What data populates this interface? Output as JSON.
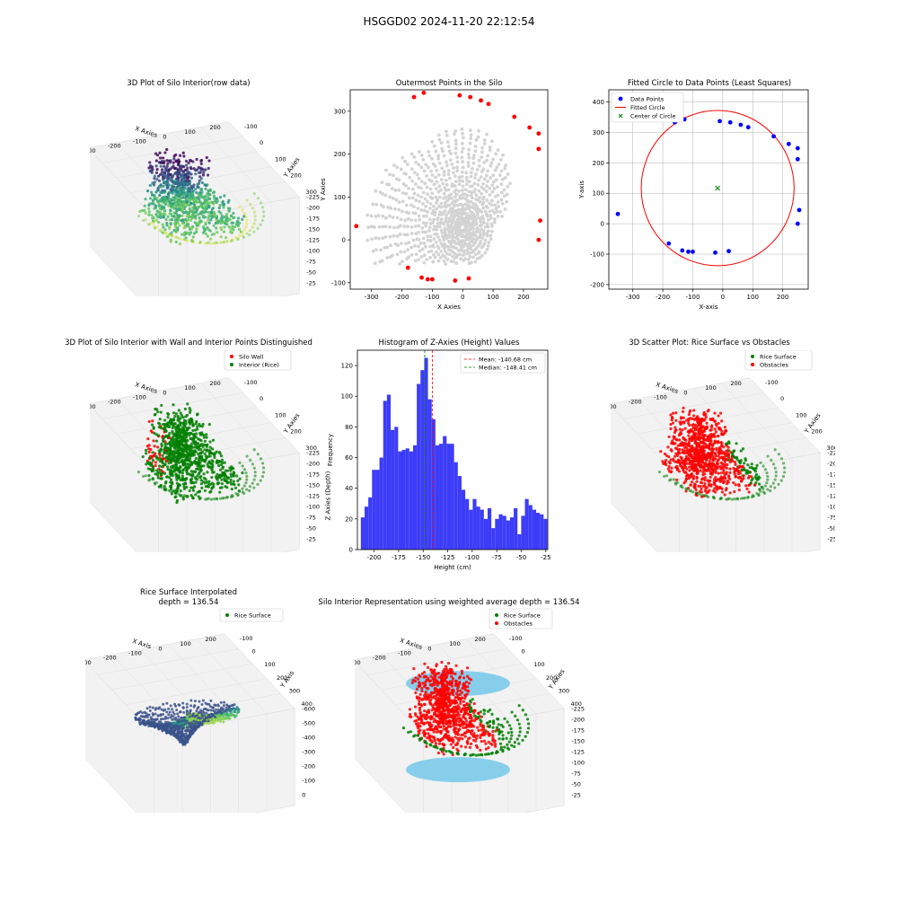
{
  "suptitle": "HSGGD02 2024-11-20 22:12:54",
  "chart_data": [
    {
      "id": "p1",
      "type": "scatter3d",
      "title": "3D Plot of Silo Interior(row data)",
      "xlabel": "X Axies",
      "ylabel": "Y Axies",
      "zlabel": "Z Axies (Depth)",
      "xticks": [
        "-300",
        "-200",
        "-100",
        "0",
        "100",
        "200"
      ],
      "yticks": [
        "-100",
        "0",
        "100",
        "200",
        "300"
      ],
      "zticks": [
        "-25",
        "-50",
        "-75",
        "-100",
        "-125",
        "-150",
        "-175",
        "-200",
        "-225"
      ],
      "colormap": "viridis"
    },
    {
      "id": "p2",
      "type": "scatter",
      "title": "Outermost Points in the Silo",
      "xlabel": "X Axies",
      "ylabel": "Y Axies",
      "xlim": [
        -370,
        280
      ],
      "ylim": [
        -115,
        350
      ],
      "xticks": [
        -300,
        -200,
        -100,
        0,
        100,
        200
      ],
      "yticks": [
        -100,
        0,
        100,
        200,
        300
      ],
      "colors": {
        "points": "#d3d3d3",
        "outermost": "#ff0000"
      },
      "outermost": [
        [
          -350,
          32
        ],
        [
          -180,
          -65
        ],
        [
          -135,
          -88
        ],
        [
          -115,
          -92
        ],
        [
          -100,
          -92
        ],
        [
          -25,
          -95
        ],
        [
          20,
          -90
        ],
        [
          -160,
          333
        ],
        [
          -128,
          343
        ],
        [
          -10,
          337
        ],
        [
          25,
          333
        ],
        [
          60,
          325
        ],
        [
          85,
          317
        ],
        [
          170,
          287
        ],
        [
          220,
          262
        ],
        [
          250,
          248
        ],
        [
          250,
          212
        ],
        [
          255,
          45
        ],
        [
          250,
          0
        ]
      ]
    },
    {
      "id": "p3",
      "type": "scatter",
      "title": "Fitted Circle to Data Points (Least Squares)",
      "xlabel": "X-axis",
      "ylabel": "Y-axis",
      "xlim": [
        -380,
        285
      ],
      "ylim": [
        -215,
        440
      ],
      "xticks": [
        -300,
        -200,
        -100,
        0,
        100,
        200
      ],
      "yticks": [
        -200,
        -100,
        0,
        100,
        200,
        300,
        400
      ],
      "legend": [
        "Data Points",
        "Fitted Circle",
        "Center of Circle"
      ],
      "circle": {
        "cx": -17,
        "cy": 117,
        "r": 255
      },
      "points": [
        [
          -350,
          32
        ],
        [
          -180,
          -65
        ],
        [
          -135,
          -88
        ],
        [
          -115,
          -92
        ],
        [
          -100,
          -92
        ],
        [
          -25,
          -95
        ],
        [
          20,
          -90
        ],
        [
          -160,
          333
        ],
        [
          -128,
          343
        ],
        [
          -10,
          337
        ],
        [
          25,
          333
        ],
        [
          60,
          325
        ],
        [
          85,
          317
        ],
        [
          170,
          287
        ],
        [
          220,
          262
        ],
        [
          250,
          248
        ],
        [
          250,
          212
        ],
        [
          255,
          45
        ],
        [
          250,
          0
        ]
      ],
      "colors": {
        "points": "#0000ff",
        "circle": "#ff0000",
        "center": "#008000"
      }
    },
    {
      "id": "p4",
      "type": "scatter3d",
      "title": "3D Plot of Silo Interior with Wall and Interior Points Distinguished",
      "xlabel": "X Axies",
      "ylabel": "Y Axies",
      "zlabel": "Z Axies (Depth)",
      "xticks": [
        "-300",
        "-200",
        "-100",
        "0",
        "100",
        "200"
      ],
      "yticks": [
        "-100",
        "0",
        "100",
        "200",
        "300"
      ],
      "zticks": [
        "-25",
        "-50",
        "-75",
        "-100",
        "-125",
        "-150",
        "-175",
        "-200",
        "-225"
      ],
      "legend": [
        "Silo Wall",
        "Interior (Rice)"
      ],
      "colors": {
        "wall": "#ff0000",
        "interior": "#008000"
      }
    },
    {
      "id": "p5",
      "type": "bar",
      "title": "Histogram of Z-Axies (Height) Values",
      "xlabel": "Height (cm)",
      "ylabel": "Frequency",
      "xlim": [
        -217,
        -23
      ],
      "ylim": [
        0,
        130
      ],
      "xticks": [
        -200,
        -175,
        -150,
        -125,
        -100,
        -75,
        -50,
        -25
      ],
      "yticks": [
        0,
        20,
        40,
        60,
        80,
        100,
        120
      ],
      "bin_start": -213.5,
      "bin_width": 3.8,
      "values": [
        21,
        28,
        34,
        52,
        52,
        60,
        97,
        101,
        78,
        80,
        64,
        65,
        66,
        64,
        68,
        108,
        117,
        125,
        98,
        85,
        68,
        69,
        74,
        69,
        69,
        57,
        48,
        39,
        33,
        26,
        33,
        28,
        26,
        20,
        27,
        14,
        20,
        23,
        22,
        19,
        21,
        27,
        10,
        22,
        33,
        29,
        26,
        24,
        23,
        20
      ],
      "mean": -140.68,
      "median": -148.41,
      "legend": [
        "Mean: -140.68 cm",
        "Median: -148.41 cm"
      ],
      "colors": {
        "bars": "#3c3cf8",
        "mean": "#ff0000",
        "median": "#008000"
      }
    },
    {
      "id": "p6",
      "type": "scatter3d",
      "title": "3D Scatter Plot: Rice Surface vs Obstacles",
      "xlabel": "X Axies",
      "ylabel": "Y Axies",
      "zlabel": "Z Axies",
      "xticks": [
        "-300",
        "-200",
        "-100",
        "0",
        "100",
        "200"
      ],
      "yticks": [
        "-100",
        "0",
        "100",
        "200",
        "300"
      ],
      "zticks": [
        "-25",
        "-50",
        "-75",
        "-100",
        "-125",
        "-150",
        "-175",
        "-200",
        "-225"
      ],
      "legend": [
        "Rice Surface",
        "Obstacles"
      ],
      "colors": {
        "rice": "#008000",
        "obstacles": "#ff0000"
      }
    },
    {
      "id": "p7",
      "type": "surface3d",
      "title": "Rice Surface Interpolated\ndepth = 136.54",
      "xlabel": "X Axis",
      "ylabel": "Y Axis",
      "zlabel": "Z Axis",
      "xticks": [
        "-300",
        "-200",
        "-100",
        "0",
        "100",
        "200"
      ],
      "yticks": [
        "-100",
        "0",
        "100",
        "200",
        "300",
        "400"
      ],
      "zticks": [
        "0",
        "-100",
        "-200",
        "-300",
        "-400",
        "-500",
        "-600"
      ],
      "legend": [
        "Rice Surface"
      ],
      "colors": {
        "rice": "#008000"
      }
    },
    {
      "id": "p8",
      "type": "scatter3d",
      "title": "Silo Interior Representation using weighted average depth = 136.54",
      "xlabel": "X Axies",
      "ylabel": "Y Axies",
      "zlabel": "Z Axies",
      "xticks": [
        "-300",
        "-200",
        "-100",
        "0",
        "100",
        "200"
      ],
      "yticks": [
        "-100",
        "0",
        "100",
        "200",
        "300",
        "400"
      ],
      "zticks": [
        "-25",
        "-50",
        "-75",
        "-100",
        "-125",
        "-150",
        "-175",
        "-200",
        "-225"
      ],
      "legend": [
        "Rice Surface",
        "Obstacles"
      ],
      "colors": {
        "rice": "#008000",
        "obstacles": "#ff0000",
        "wall": "#87ceeb"
      }
    }
  ]
}
